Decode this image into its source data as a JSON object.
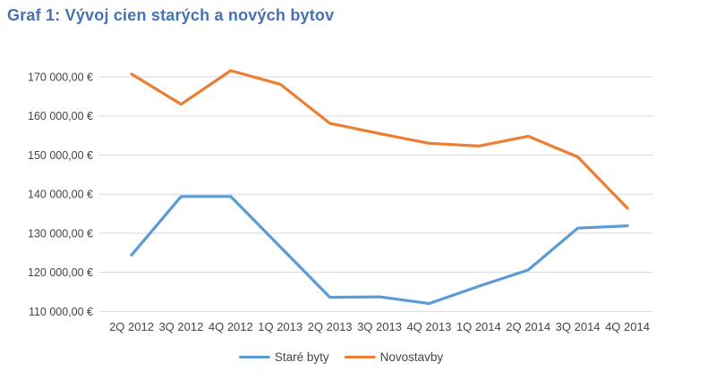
{
  "title": "Graf 1: Vývoj cien starých a nových bytov",
  "colors": {
    "title": "#4472B4",
    "axis_text": "#444444",
    "gridline": "#D9D9D9",
    "stare_byty": "#5B9BD5",
    "novostavby": "#ED7D31",
    "background": "#FFFFFF"
  },
  "chart_data": {
    "type": "line",
    "title": "Graf 1: Vývoj cien starých a nových bytov",
    "categories": [
      "2Q 2012",
      "3Q 2012",
      "4Q 2012",
      "1Q 2013",
      "2Q 2013",
      "3Q 2013",
      "4Q 2013",
      "1Q 2014",
      "2Q 2014",
      "3Q 2014",
      "4Q 2014"
    ],
    "series": [
      {
        "key": "stare-byty",
        "name": "Staré byty",
        "color": "#5B9BD5",
        "values": [
          124400,
          139400,
          139400,
          126500,
          113600,
          113700,
          112000,
          116400,
          120600,
          131300,
          131900
        ]
      },
      {
        "key": "novostavby",
        "name": "Novostavby",
        "color": "#ED7D31",
        "values": [
          170700,
          163000,
          171600,
          168100,
          158100,
          155500,
          153000,
          152300,
          154800,
          149500,
          136400
        ]
      }
    ],
    "ylim": [
      110000,
      170000
    ],
    "yticks": [
      110000,
      120000,
      130000,
      140000,
      150000,
      160000,
      170000
    ],
    "ytick_labels_top_to_bottom": [
      "170 000,00 €",
      "160 000,00 €",
      "150 000,00 €",
      "140 000,00 €",
      "130 000,00 €",
      "120 000,00 €",
      "110 000,00 €"
    ],
    "xlabel": "",
    "ylabel": "",
    "grid": true,
    "legend_position": "bottom-center"
  }
}
